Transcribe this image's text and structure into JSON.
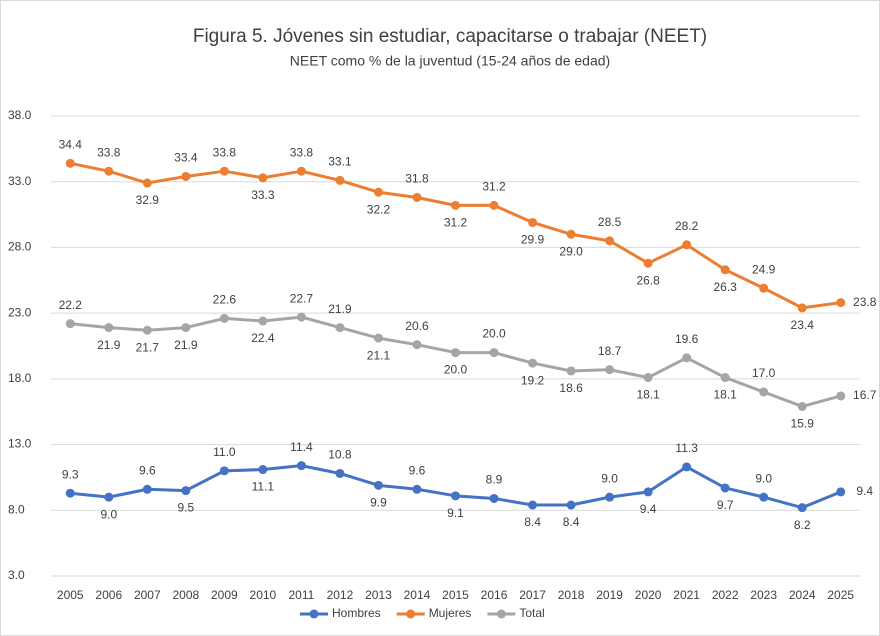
{
  "chart_data": {
    "type": "line",
    "title": "Figura 5. Jóvenes sin estudiar, capacitarse o trabajar (NEET)",
    "subtitle": "NEET como % de la juventud (15-24 años de edad)",
    "categories": [
      "2005",
      "2006",
      "2007",
      "2008",
      "2009",
      "2010",
      "2011",
      "2012",
      "2013",
      "2014",
      "2015",
      "2016",
      "2017",
      "2018",
      "2019",
      "2020",
      "2021",
      "2022",
      "2023",
      "2024",
      "2025"
    ],
    "series": [
      {
        "name": "Hombres",
        "color": "#4472c4",
        "values": [
          9.3,
          9.0,
          9.6,
          9.5,
          11.0,
          11.1,
          11.4,
          10.8,
          9.9,
          9.6,
          9.1,
          8.9,
          8.4,
          8.4,
          9.0,
          9.4,
          11.3,
          9.7,
          9.0,
          8.2,
          9.4
        ],
        "value_labels": [
          "9.3",
          "9.0",
          "9.6",
          "9.5",
          "11.0",
          "11.1",
          "11.4",
          "10.8",
          "9.9",
          "9.6",
          "9.1",
          "8.9",
          "8.4",
          "8.4",
          "9.0",
          "9.4",
          "11.3",
          "9.7",
          "9.0",
          "8.2",
          "9.4"
        ]
      },
      {
        "name": "Mujeres",
        "color": "#ed7d31",
        "values": [
          34.4,
          33.8,
          32.9,
          33.4,
          33.8,
          33.3,
          33.8,
          33.1,
          32.2,
          31.8,
          31.2,
          31.2,
          29.9,
          29.0,
          28.5,
          26.8,
          28.2,
          26.3,
          24.9,
          23.4,
          23.8
        ],
        "value_labels": [
          "34.4",
          "33.8",
          "32.9",
          "33.4",
          "33.8",
          "33.3",
          "33.8",
          "33.1",
          "32.2",
          "31.8",
          "31.2",
          "31.2",
          "29.9",
          "29.0",
          "28.5",
          "26.8",
          "28.2",
          "26.3",
          "24.9",
          "23.4",
          "23.8"
        ]
      },
      {
        "name": "Total",
        "color": "#a5a5a5",
        "values": [
          22.2,
          21.9,
          21.7,
          21.9,
          22.6,
          22.4,
          22.7,
          21.9,
          21.1,
          20.6,
          20.0,
          20.0,
          19.2,
          18.6,
          18.7,
          18.1,
          19.6,
          18.1,
          17.0,
          15.9,
          16.7
        ],
        "value_labels": [
          "22.2",
          "21.9",
          "21.7",
          "21.9",
          "22.6",
          "22.4",
          "22.7",
          "21.9",
          "21.1",
          "20.6",
          "20.0",
          "20.0",
          "19.2",
          "18.6",
          "18.7",
          "18.1",
          "19.6",
          "18.1",
          "17.0",
          "15.9",
          "16.7"
        ]
      }
    ],
    "ylim": [
      3,
      38
    ],
    "yticks": [
      {
        "value": 3,
        "label": "3.0"
      },
      {
        "value": 8,
        "label": "8.0"
      },
      {
        "value": 13,
        "label": "13.0"
      },
      {
        "value": 18,
        "label": "18.0"
      },
      {
        "value": 23,
        "label": "23.0"
      },
      {
        "value": 28,
        "label": "28.0"
      },
      {
        "value": 33,
        "label": "33.0"
      },
      {
        "value": 38,
        "label": "38.0"
      }
    ],
    "grid": true,
    "legend": "bottom"
  }
}
